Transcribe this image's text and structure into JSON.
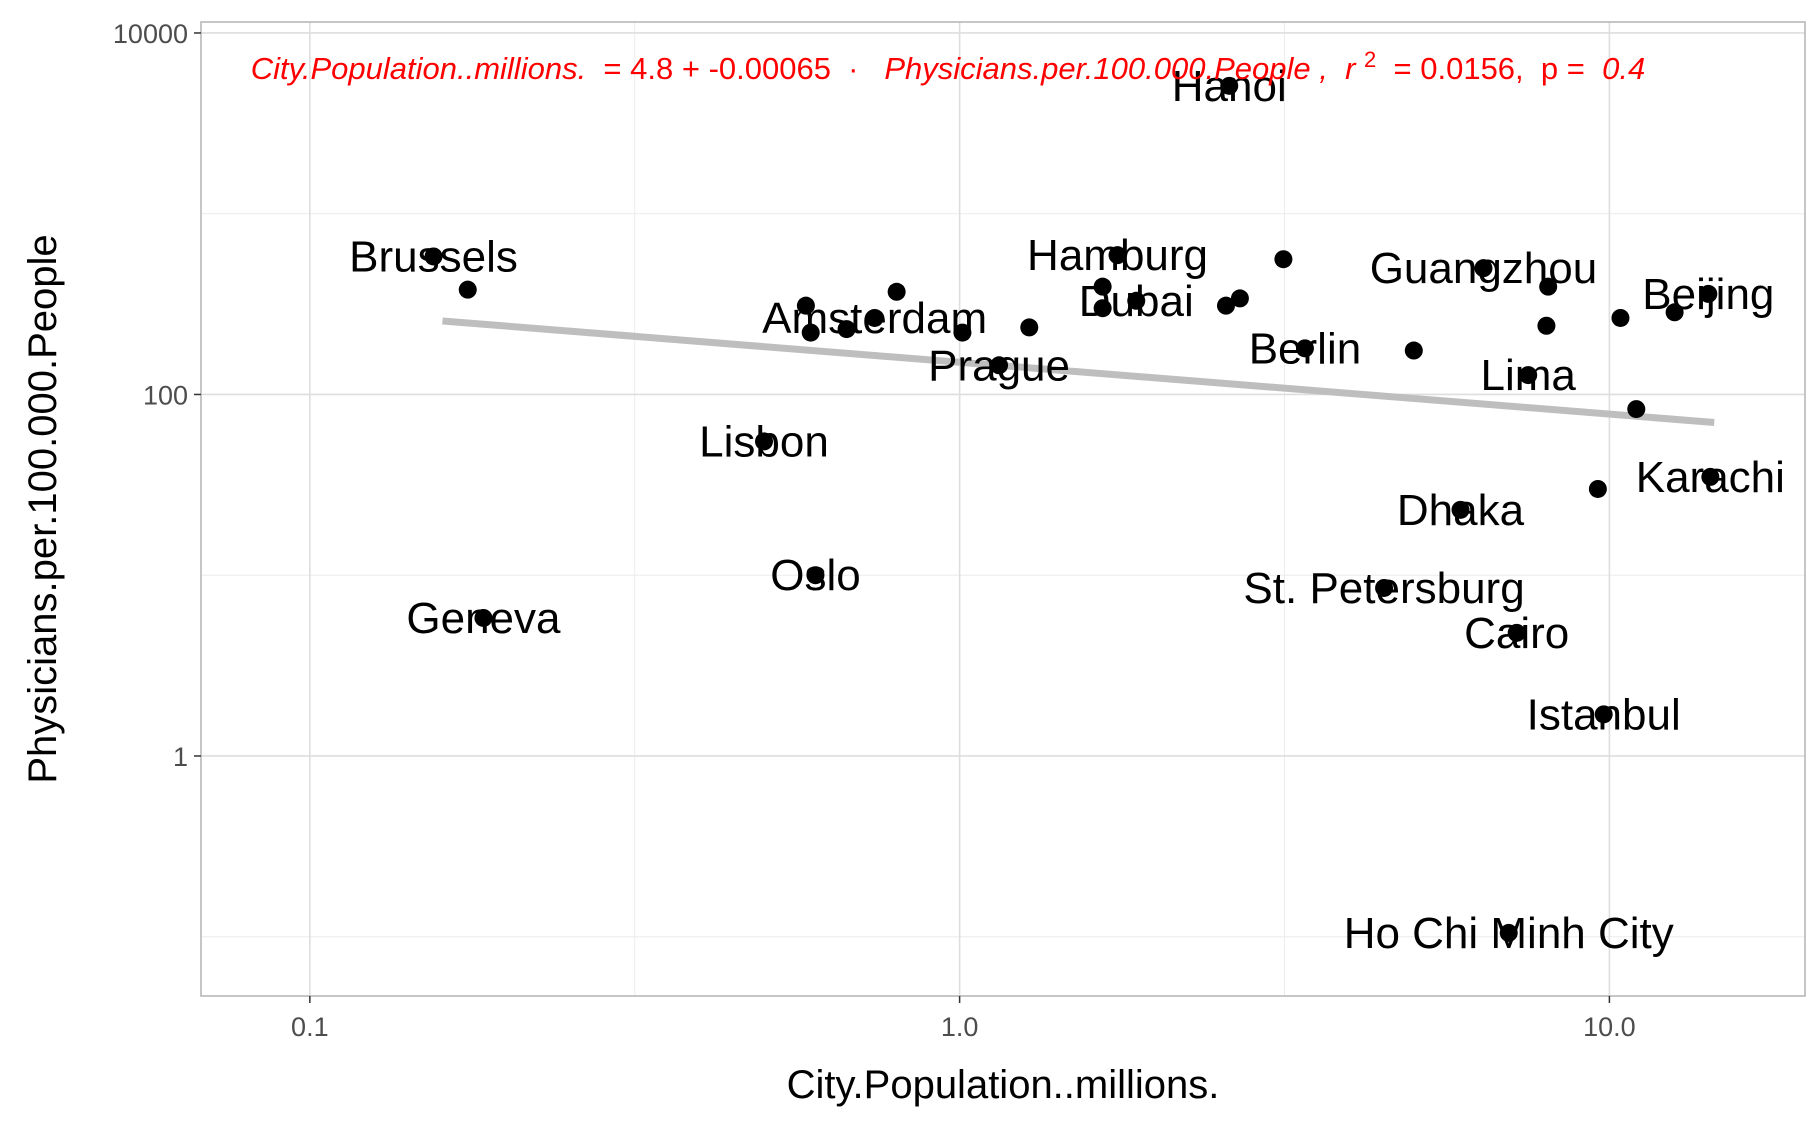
{
  "chart_data": {
    "type": "scatter",
    "title": "",
    "xlabel": "City.Population..millions.",
    "ylabel": "Physicians.per.100.000.People",
    "x_scale": "log10",
    "y_scale": "log10",
    "xlim": [
      0.068,
      20
    ],
    "ylim": [
      0.047,
      11500
    ],
    "x_ticks": [
      0.1,
      1.0,
      10.0
    ],
    "x_tick_labels": [
      "0.1",
      "1.0",
      "10.0"
    ],
    "y_ticks": [
      1,
      100,
      10000
    ],
    "y_tick_labels": [
      "1",
      "100",
      "10000"
    ],
    "grid": true,
    "legend": "none",
    "point_color": "#000000",
    "trend_color": "#bebebe",
    "annotation_color": "#ff0000",
    "annotation": {
      "lhs": "City.Population..millions.",
      "eq_mid": " = 4.8 + -0.00065  ·  ",
      "rhs": "Physicians.per.100.000.People",
      "r2_sep": ",  r",
      "r2_sup": "2",
      "r2_val": " = 0.0156,  p = ",
      "p_val": "0.4"
    },
    "trend_line": {
      "x": [
        0.16,
        14.5
      ],
      "y": [
        255,
        70
      ]
    },
    "points": [
      {
        "x": 0.155,
        "y": 580,
        "label": "Brussels"
      },
      {
        "x": 0.175,
        "y": 380,
        "label": ""
      },
      {
        "x": 0.185,
        "y": 5.8,
        "label": "Geneva"
      },
      {
        "x": 0.5,
        "y": 55,
        "label": "Lisbon"
      },
      {
        "x": 0.58,
        "y": 310,
        "label": ""
      },
      {
        "x": 0.59,
        "y": 220,
        "label": ""
      },
      {
        "x": 0.6,
        "y": 10,
        "label": "Oslo"
      },
      {
        "x": 0.67,
        "y": 230,
        "label": ""
      },
      {
        "x": 0.74,
        "y": 265,
        "label": "Amsterdam"
      },
      {
        "x": 0.8,
        "y": 370,
        "label": ""
      },
      {
        "x": 1.01,
        "y": 220,
        "label": ""
      },
      {
        "x": 1.15,
        "y": 145,
        "label": "Prague"
      },
      {
        "x": 1.28,
        "y": 235,
        "label": ""
      },
      {
        "x": 1.66,
        "y": 395,
        "label": ""
      },
      {
        "x": 1.66,
        "y": 300,
        "label": ""
      },
      {
        "x": 1.75,
        "y": 590,
        "label": "Hamburg"
      },
      {
        "x": 1.87,
        "y": 330,
        "label": "Dubai"
      },
      {
        "x": 2.6,
        "y": 5100,
        "label": "Hanoi"
      },
      {
        "x": 2.57,
        "y": 310,
        "label": ""
      },
      {
        "x": 2.7,
        "y": 340,
        "label": ""
      },
      {
        "x": 3.15,
        "y": 560,
        "label": ""
      },
      {
        "x": 3.4,
        "y": 180,
        "label": "Berlin"
      },
      {
        "x": 4.5,
        "y": 8.5,
        "label": "St. Petersburg"
      },
      {
        "x": 5.0,
        "y": 175,
        "label": ""
      },
      {
        "x": 5.9,
        "y": 23,
        "label": "Dhaka"
      },
      {
        "x": 6.4,
        "y": 500,
        "label": "Guangzhou"
      },
      {
        "x": 7.2,
        "y": 4.8,
        "label": "Cairo"
      },
      {
        "x": 7.0,
        "y": 0.105,
        "label": "Ho Chi Minh City"
      },
      {
        "x": 7.5,
        "y": 128,
        "label": "Lima"
      },
      {
        "x": 8.05,
        "y": 395,
        "label": ""
      },
      {
        "x": 8.0,
        "y": 240,
        "label": ""
      },
      {
        "x": 9.6,
        "y": 30,
        "label": ""
      },
      {
        "x": 9.8,
        "y": 1.7,
        "label": "Istanbul"
      },
      {
        "x": 10.4,
        "y": 265,
        "label": ""
      },
      {
        "x": 11.0,
        "y": 83,
        "label": ""
      },
      {
        "x": 12.6,
        "y": 285,
        "label": ""
      },
      {
        "x": 14.2,
        "y": 360,
        "label": "Beijing"
      },
      {
        "x": 14.3,
        "y": 35,
        "label": "Karachi"
      }
    ]
  }
}
